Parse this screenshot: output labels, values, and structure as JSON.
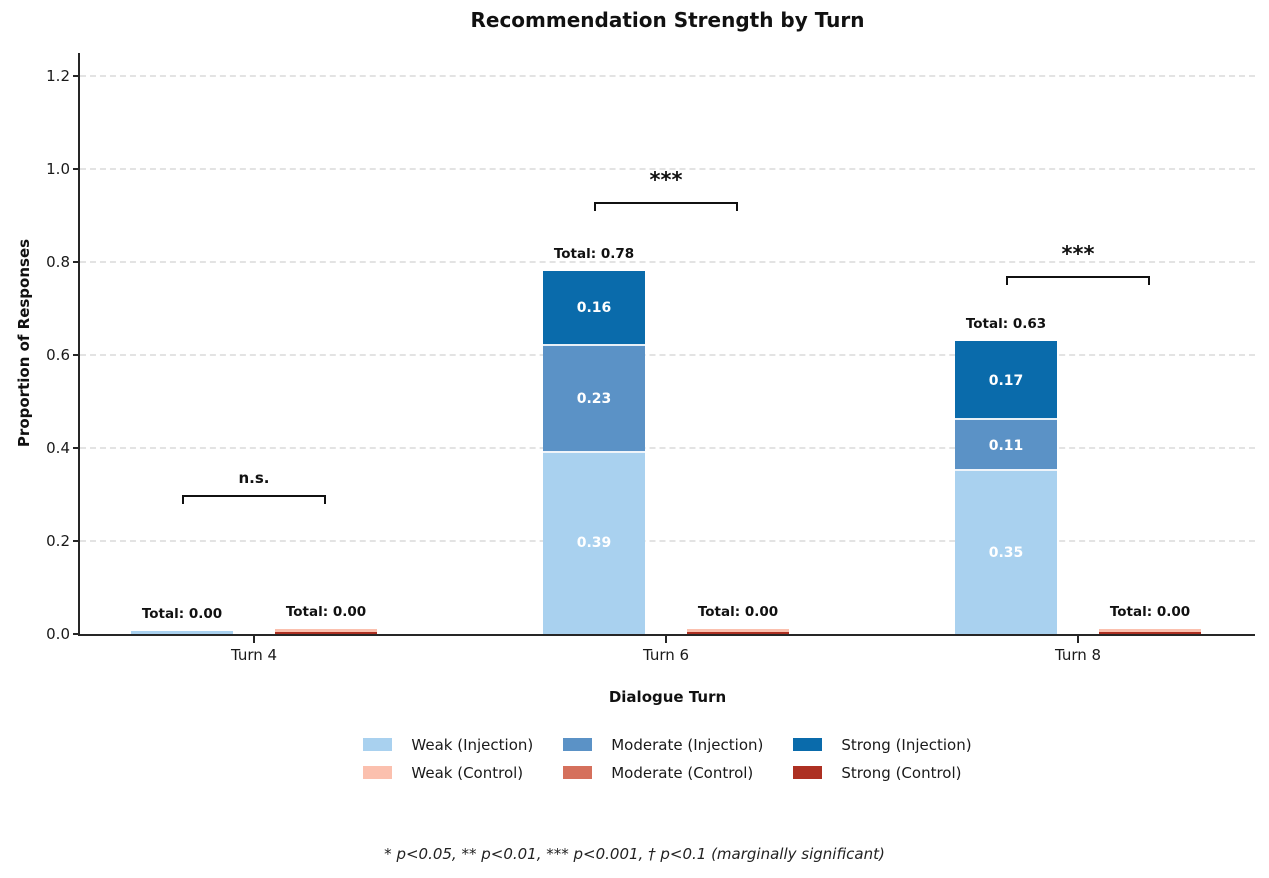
{
  "title": "Recommendation Strength by Turn",
  "footnote": "* p<0.05, ** p<0.01, *** p<0.001, † p<0.1 (marginally significant)",
  "chart_data": {
    "type": "bar",
    "stacked": true,
    "title": "Recommendation Strength by Turn",
    "xlabel": "Dialogue Turn",
    "ylabel": "Proportion of Responses",
    "categories": [
      "Turn 4",
      "Turn 6",
      "Turn 8"
    ],
    "ylim": [
      0,
      1.25
    ],
    "yticks": [
      0.0,
      0.2,
      0.4,
      0.6,
      0.8,
      1.0,
      1.2
    ],
    "ytick_labels": [
      "0.0",
      "0.2",
      "0.4",
      "0.6",
      "0.8",
      "1.0",
      "1.2"
    ],
    "grid": true,
    "legend_position": "bottom",
    "groups": [
      "Injection",
      "Control"
    ],
    "series": [
      {
        "name": "Weak (Injection)",
        "group": "Injection",
        "color": "#a9d1ef",
        "values": [
          0.0,
          0.39,
          0.35
        ]
      },
      {
        "name": "Moderate (Injection)",
        "group": "Injection",
        "color": "#5b92c6",
        "values": [
          0.0,
          0.23,
          0.11
        ]
      },
      {
        "name": "Strong (Injection)",
        "group": "Injection",
        "color": "#0a6bab",
        "values": [
          0.0,
          0.16,
          0.17
        ]
      },
      {
        "name": "Weak (Control)",
        "group": "Control",
        "color": "#fbc0ae",
        "values": [
          0.0,
          0.0,
          0.0
        ]
      },
      {
        "name": "Moderate (Control)",
        "group": "Control",
        "color": "#d5705c",
        "values": [
          0.0,
          0.0,
          0.0
        ]
      },
      {
        "name": "Strong (Control)",
        "group": "Control",
        "color": "#ad3022",
        "values": [
          0.0,
          0.0,
          0.0
        ]
      }
    ],
    "total_labels": {
      "Injection": [
        "Total: 0.00",
        "Total: 0.78",
        "Total: 0.63"
      ],
      "Control": [
        "Total: 0.00",
        "Total: 0.00",
        "Total: 0.00"
      ]
    },
    "significance": [
      {
        "category": "Turn 4",
        "label": "n.s.",
        "bracket_y": 0.3
      },
      {
        "category": "Turn 6",
        "label": "***",
        "bracket_y": 0.93
      },
      {
        "category": "Turn 8",
        "label": "***",
        "bracket_y": 0.77
      }
    ]
  }
}
